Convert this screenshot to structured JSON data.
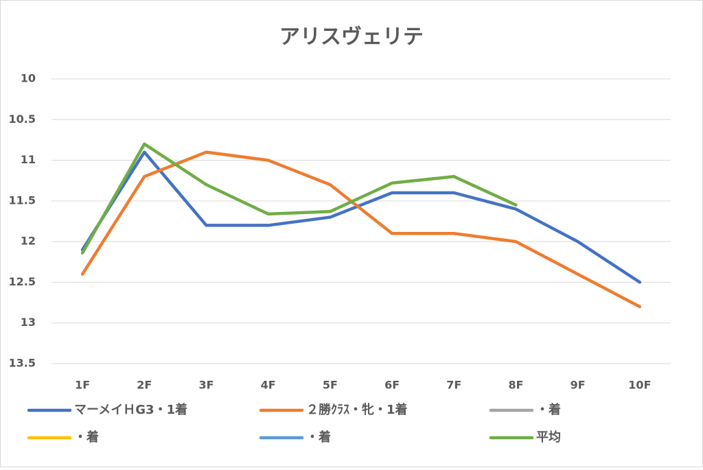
{
  "chart_data": {
    "type": "line",
    "title": "アリスヴェリテ",
    "categories": [
      "1F",
      "2F",
      "3F",
      "4F",
      "5F",
      "6F",
      "7F",
      "8F",
      "9F",
      "10F"
    ],
    "series": [
      {
        "name": "マーメイＨG3・1着",
        "color": "#4472c4",
        "values": [
          12.1,
          10.9,
          11.8,
          11.8,
          11.7,
          11.4,
          11.4,
          11.6,
          12.0,
          12.5
        ]
      },
      {
        "name": "２勝ｸﾗｽ・牝・1着",
        "color": "#ed7d31",
        "values": [
          12.4,
          11.2,
          10.9,
          11.0,
          11.3,
          11.9,
          11.9,
          12.0,
          12.4,
          12.8
        ]
      },
      {
        "name": "・着",
        "color": "#a5a5a5",
        "values": [
          null,
          null,
          null,
          null,
          null,
          null,
          null,
          null,
          null,
          null
        ]
      },
      {
        "name": "・着",
        "color": "#ffc000",
        "values": [
          null,
          null,
          null,
          null,
          null,
          null,
          null,
          null,
          null,
          null
        ]
      },
      {
        "name": "・着",
        "color": "#5b9bd5",
        "values": [
          null,
          null,
          null,
          null,
          null,
          null,
          null,
          null,
          null,
          null
        ]
      },
      {
        "name": "平均",
        "color": "#70ad47",
        "values": [
          12.14,
          10.8,
          11.3,
          11.66,
          11.63,
          11.28,
          11.2,
          11.55,
          null,
          null
        ]
      }
    ],
    "ylim": [
      10,
      13.5
    ],
    "y_inverted": true,
    "yticks": [
      10,
      10.5,
      11,
      11.5,
      12,
      12.5,
      13,
      13.5
    ],
    "grid": true,
    "legend": "bottom"
  }
}
